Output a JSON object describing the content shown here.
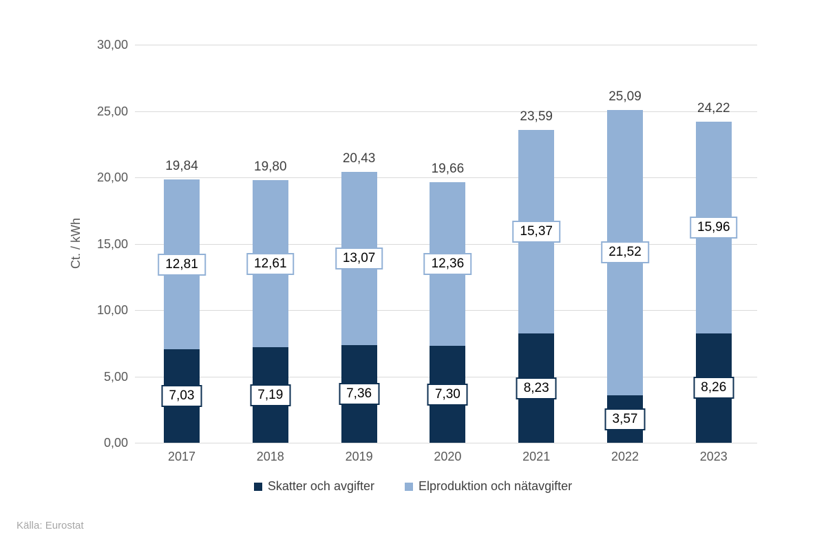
{
  "chart_data": {
    "type": "bar",
    "stacked": true,
    "title": "",
    "xlabel": "",
    "ylabel": "Ct. / kWh",
    "ylim": [
      0,
      30
    ],
    "ytick_step": 5,
    "yticks": [
      {
        "value": 0,
        "label": "0,00"
      },
      {
        "value": 5,
        "label": "5,00"
      },
      {
        "value": 10,
        "label": "10,00"
      },
      {
        "value": 15,
        "label": "15,00"
      },
      {
        "value": 20,
        "label": "20,00"
      },
      {
        "value": 25,
        "label": "25,00"
      },
      {
        "value": 30,
        "label": "30,00"
      }
    ],
    "categories": [
      "2017",
      "2018",
      "2019",
      "2020",
      "2021",
      "2022",
      "2023"
    ],
    "series": [
      {
        "name": "Skatter och avgifter",
        "color": "#0e3052",
        "values": [
          7.03,
          7.19,
          7.36,
          7.3,
          8.23,
          3.57,
          8.26
        ],
        "labels": [
          "7,03",
          "7,19",
          "7,36",
          "7,30",
          "8,23",
          "3,57",
          "8,26"
        ]
      },
      {
        "name": "Elproduktion och nätavgifter",
        "color": "#92b1d6",
        "values": [
          12.81,
          12.61,
          13.07,
          12.36,
          15.37,
          21.52,
          15.96
        ],
        "labels": [
          "12,81",
          "12,61",
          "13,07",
          "12,36",
          "15,37",
          "21,52",
          "15,96"
        ]
      }
    ],
    "totals": [
      19.84,
      19.8,
      20.43,
      19.66,
      23.59,
      25.09,
      24.22
    ],
    "total_labels": [
      "19,84",
      "19,80",
      "20,43",
      "19,66",
      "23,59",
      "25,09",
      "24,22"
    ],
    "grid": true,
    "legend_position": "bottom"
  },
  "colors": {
    "gridline": "#d9d9d9",
    "axis_text": "#595959",
    "total_label_text": "#3f3f3f",
    "legend_text": "#404040",
    "source_text": "#a6a6a6",
    "background": "#ffffff"
  },
  "source": {
    "label": "Källa: Eurostat"
  }
}
